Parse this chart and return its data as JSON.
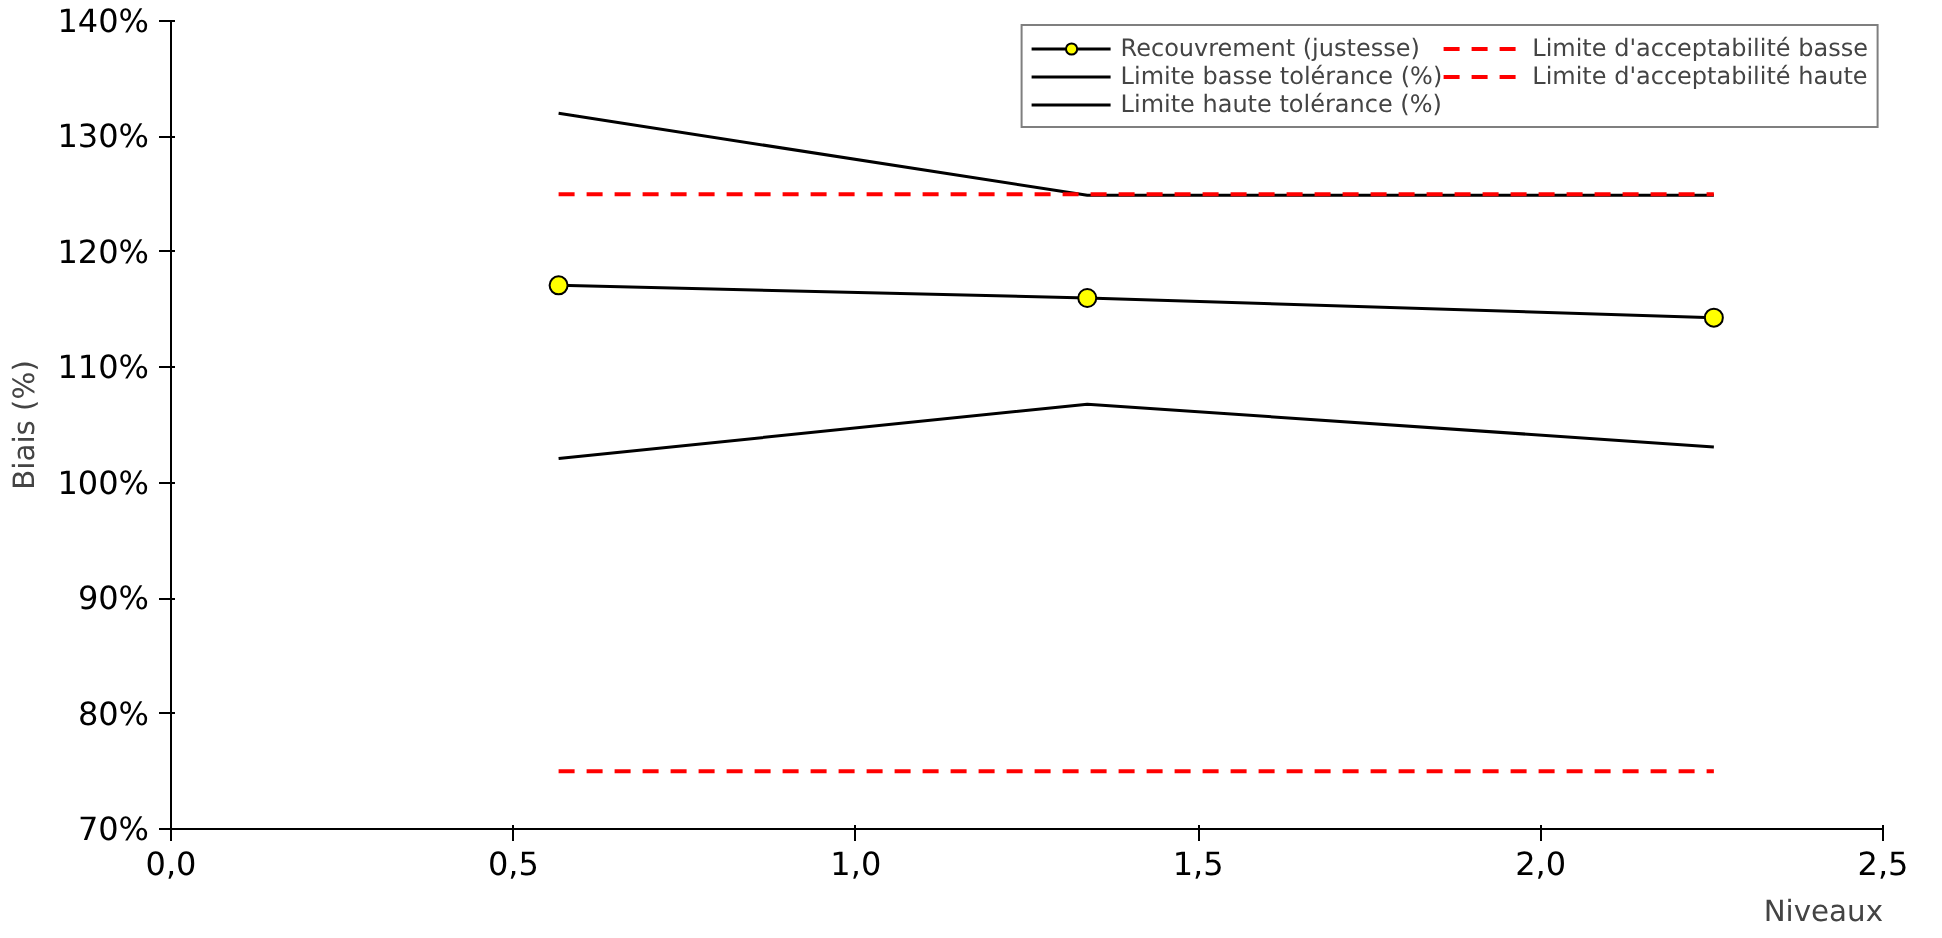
{
  "chart_data": {
    "type": "line",
    "xlabel": "Niveaux",
    "ylabel": "Biais (%)",
    "x": [
      0.566,
      1.338,
      2.253
    ],
    "series": [
      {
        "name": "Recouvrement (justesse)",
        "color": "#000000",
        "marker": "circle",
        "colors": [
          "#ffff00",
          "#ffff00",
          "#ffff00"
        ],
        "line_style": "solid",
        "values": [
          117.1,
          116.0,
          114.3
        ]
      },
      {
        "name": "Limite basse tolérance (%)",
        "color": "#000000",
        "marker": "none",
        "line_style": "solid",
        "values": [
          102.1,
          106.8,
          103.1
        ]
      },
      {
        "name": "Limite haute tolérance (%)",
        "color": "#000000",
        "marker": "none",
        "line_style": "solid",
        "values": [
          132.0,
          124.9,
          124.9
        ]
      },
      {
        "name": "Limite d'acceptabilité basse",
        "color": "#ff0000",
        "marker": "none",
        "line_style": "dashed",
        "values": [
          75.0,
          75.0,
          75.0
        ]
      },
      {
        "name": "Limite d'acceptabilité haute",
        "color": "#ff0000",
        "marker": "none",
        "line_style": "dashed",
        "values": [
          125.0,
          125.0,
          125.0
        ]
      }
    ],
    "xlim": [
      0,
      2.5
    ],
    "xticks": [
      {
        "value": 0,
        "label": "0,0"
      },
      {
        "value": 0.5,
        "label": "0,5"
      },
      {
        "value": 1.0,
        "label": "1,0"
      },
      {
        "value": 1.5,
        "label": "1,5"
      },
      {
        "value": 2.0,
        "label": "2,0"
      },
      {
        "value": 2.5,
        "label": "2,5"
      }
    ],
    "ylim": [
      70,
      140
    ],
    "yticks": [
      {
        "value": 70,
        "label": "70%"
      },
      {
        "value": 80,
        "label": "80%"
      },
      {
        "value": 90,
        "label": "90%"
      },
      {
        "value": 100,
        "label": "100%"
      },
      {
        "value": 110,
        "label": "110%"
      },
      {
        "value": 120,
        "label": "120%"
      },
      {
        "value": 130,
        "label": "130%"
      },
      {
        "value": 140,
        "label": "140%"
      }
    ],
    "grid": false,
    "legend": "top right"
  }
}
